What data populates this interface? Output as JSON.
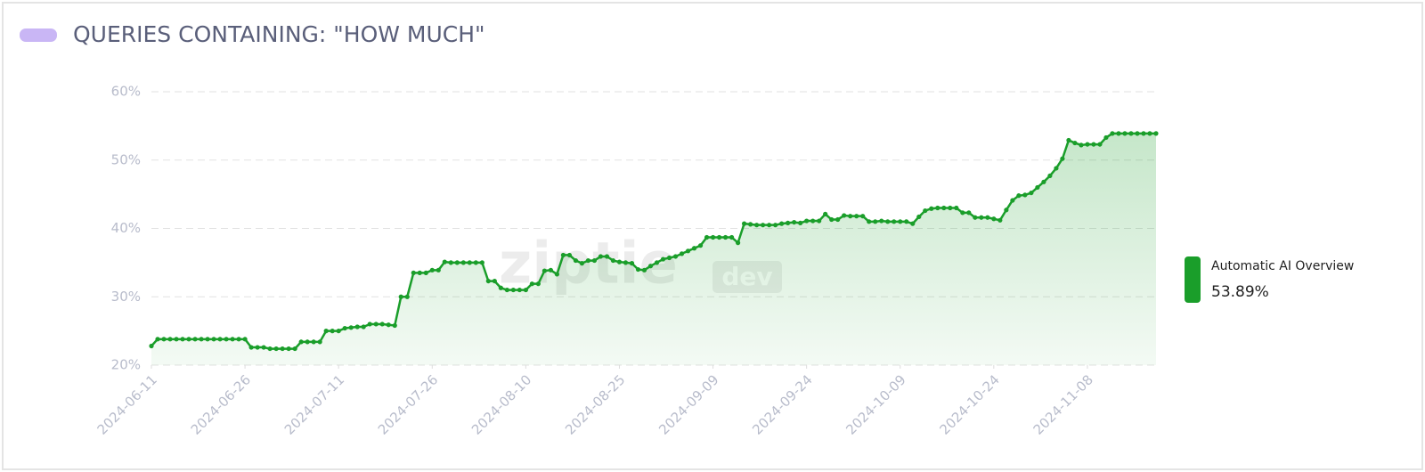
{
  "chart_data": {
    "type": "area-line",
    "title": "QUERIES CONTAINING: \"HOW MUCH\"",
    "watermark": [
      "ziptie",
      "dev"
    ],
    "x": [
      "2024-06-11",
      "2024-06-12",
      "2024-06-13",
      "2024-06-14",
      "2024-06-15",
      "2024-06-16",
      "2024-06-17",
      "2024-06-18",
      "2024-06-19",
      "2024-06-20",
      "2024-06-21",
      "2024-06-22",
      "2024-06-23",
      "2024-06-24",
      "2024-06-25",
      "2024-06-26",
      "2024-06-27",
      "2024-06-28",
      "2024-06-29",
      "2024-06-30",
      "2024-07-01",
      "2024-07-02",
      "2024-07-03",
      "2024-07-04",
      "2024-07-05",
      "2024-07-06",
      "2024-07-07",
      "2024-07-08",
      "2024-07-09",
      "2024-07-10",
      "2024-07-11",
      "2024-07-12",
      "2024-07-13",
      "2024-07-14",
      "2024-07-15",
      "2024-07-16",
      "2024-07-17",
      "2024-07-18",
      "2024-07-19",
      "2024-07-20",
      "2024-07-21",
      "2024-07-22",
      "2024-07-23",
      "2024-07-24",
      "2024-07-25",
      "2024-07-26",
      "2024-07-27",
      "2024-07-28",
      "2024-07-29",
      "2024-07-30",
      "2024-07-31",
      "2024-08-01",
      "2024-08-02",
      "2024-08-03",
      "2024-08-04",
      "2024-08-05",
      "2024-08-06",
      "2024-08-07",
      "2024-08-08",
      "2024-08-09",
      "2024-08-10",
      "2024-08-11",
      "2024-08-12",
      "2024-08-13",
      "2024-08-14",
      "2024-08-15",
      "2024-08-16",
      "2024-08-17",
      "2024-08-18",
      "2024-08-19",
      "2024-08-20",
      "2024-08-21",
      "2024-08-22",
      "2024-08-23",
      "2024-08-24",
      "2024-08-25",
      "2024-08-26",
      "2024-08-27",
      "2024-08-28",
      "2024-08-29",
      "2024-08-30",
      "2024-08-31",
      "2024-09-01",
      "2024-09-02",
      "2024-09-03",
      "2024-09-04",
      "2024-09-05",
      "2024-09-06",
      "2024-09-07",
      "2024-09-08",
      "2024-09-09",
      "2024-09-10",
      "2024-09-11",
      "2024-09-12",
      "2024-09-13",
      "2024-09-14",
      "2024-09-15",
      "2024-09-16",
      "2024-09-17",
      "2024-09-18",
      "2024-09-19",
      "2024-09-20",
      "2024-09-21",
      "2024-09-22",
      "2024-09-23",
      "2024-09-24",
      "2024-09-25",
      "2024-09-26",
      "2024-09-27",
      "2024-09-28",
      "2024-09-29",
      "2024-09-30",
      "2024-10-01",
      "2024-10-02",
      "2024-10-03",
      "2024-10-04",
      "2024-10-05",
      "2024-10-06",
      "2024-10-07",
      "2024-10-08",
      "2024-10-09",
      "2024-10-10",
      "2024-10-11",
      "2024-10-12",
      "2024-10-13",
      "2024-10-14",
      "2024-10-15",
      "2024-10-16",
      "2024-10-17",
      "2024-10-18",
      "2024-10-19",
      "2024-10-20",
      "2024-10-21",
      "2024-10-22",
      "2024-10-23",
      "2024-10-24",
      "2024-10-25",
      "2024-10-26",
      "2024-10-27",
      "2024-10-28",
      "2024-10-29",
      "2024-10-30",
      "2024-10-31",
      "2024-11-01",
      "2024-11-02",
      "2024-11-03",
      "2024-11-04",
      "2024-11-05",
      "2024-11-06",
      "2024-11-07",
      "2024-11-08",
      "2024-11-09",
      "2024-11-10",
      "2024-11-11",
      "2024-11-12",
      "2024-11-13",
      "2024-11-14",
      "2024-11-15",
      "2024-11-16",
      "2024-11-17",
      "2024-11-18",
      "2024-11-19"
    ],
    "series": [
      {
        "name": "Automatic AI Overview",
        "color": "#1a9e2a",
        "last_value_label": "53.89%",
        "values": [
          22.8,
          23.8,
          23.8,
          23.8,
          23.8,
          23.8,
          23.8,
          23.8,
          23.8,
          23.8,
          23.8,
          23.8,
          23.8,
          23.8,
          23.8,
          23.8,
          22.6,
          22.6,
          22.6,
          22.4,
          22.4,
          22.4,
          22.4,
          22.4,
          23.4,
          23.4,
          23.4,
          23.4,
          25.0,
          25.0,
          25.0,
          25.4,
          25.5,
          25.6,
          25.6,
          26.0,
          26.0,
          26.0,
          25.9,
          25.8,
          30.0,
          30.0,
          33.5,
          33.5,
          33.5,
          33.9,
          33.9,
          35.1,
          35.0,
          35.0,
          35.0,
          35.0,
          35.0,
          35.0,
          32.3,
          32.3,
          31.3,
          31.0,
          31.0,
          31.0,
          31.0,
          31.9,
          31.9,
          33.8,
          33.9,
          33.3,
          36.1,
          36.1,
          35.3,
          34.9,
          35.3,
          35.3,
          35.9,
          35.9,
          35.3,
          35.1,
          35.0,
          34.9,
          34.0,
          33.9,
          34.5,
          35.0,
          35.5,
          35.7,
          35.9,
          36.3,
          36.7,
          37.1,
          37.5,
          38.7,
          38.7,
          38.7,
          38.7,
          38.7,
          37.9,
          40.7,
          40.6,
          40.5,
          40.5,
          40.5,
          40.5,
          40.7,
          40.8,
          40.9,
          40.8,
          41.1,
          41.1,
          41.1,
          42.1,
          41.3,
          41.3,
          41.9,
          41.8,
          41.8,
          41.8,
          41.0,
          41.0,
          41.1,
          41.0,
          41.0,
          41.0,
          41.0,
          40.7,
          41.7,
          42.6,
          42.9,
          43.0,
          43.0,
          43.0,
          43.0,
          42.3,
          42.3,
          41.6,
          41.6,
          41.6,
          41.4,
          41.2,
          42.7,
          44.1,
          44.8,
          44.9,
          45.2,
          46.0,
          46.8,
          47.7,
          48.8,
          50.2,
          52.9,
          52.5,
          52.2,
          52.3,
          52.3,
          52.3,
          53.3,
          53.89,
          53.89,
          53.89,
          53.89,
          53.89,
          53.89,
          53.89,
          53.89
        ]
      }
    ],
    "xlim": [
      "2024-06-11",
      "2024-11-19"
    ],
    "xticks": [
      "2024-06-11",
      "2024-06-26",
      "2024-07-11",
      "2024-07-26",
      "2024-08-10",
      "2024-08-25",
      "2024-09-09",
      "2024-09-24",
      "2024-10-09",
      "2024-10-24",
      "2024-11-08"
    ],
    "ylim": [
      20,
      60
    ],
    "yticks": [
      {
        "value": 20,
        "label": "20%"
      },
      {
        "value": 30,
        "label": "30%"
      },
      {
        "value": 40,
        "label": "40%"
      },
      {
        "value": 50,
        "label": "50%"
      },
      {
        "value": 60,
        "label": "60%"
      }
    ],
    "grid": true,
    "legend": "right"
  }
}
